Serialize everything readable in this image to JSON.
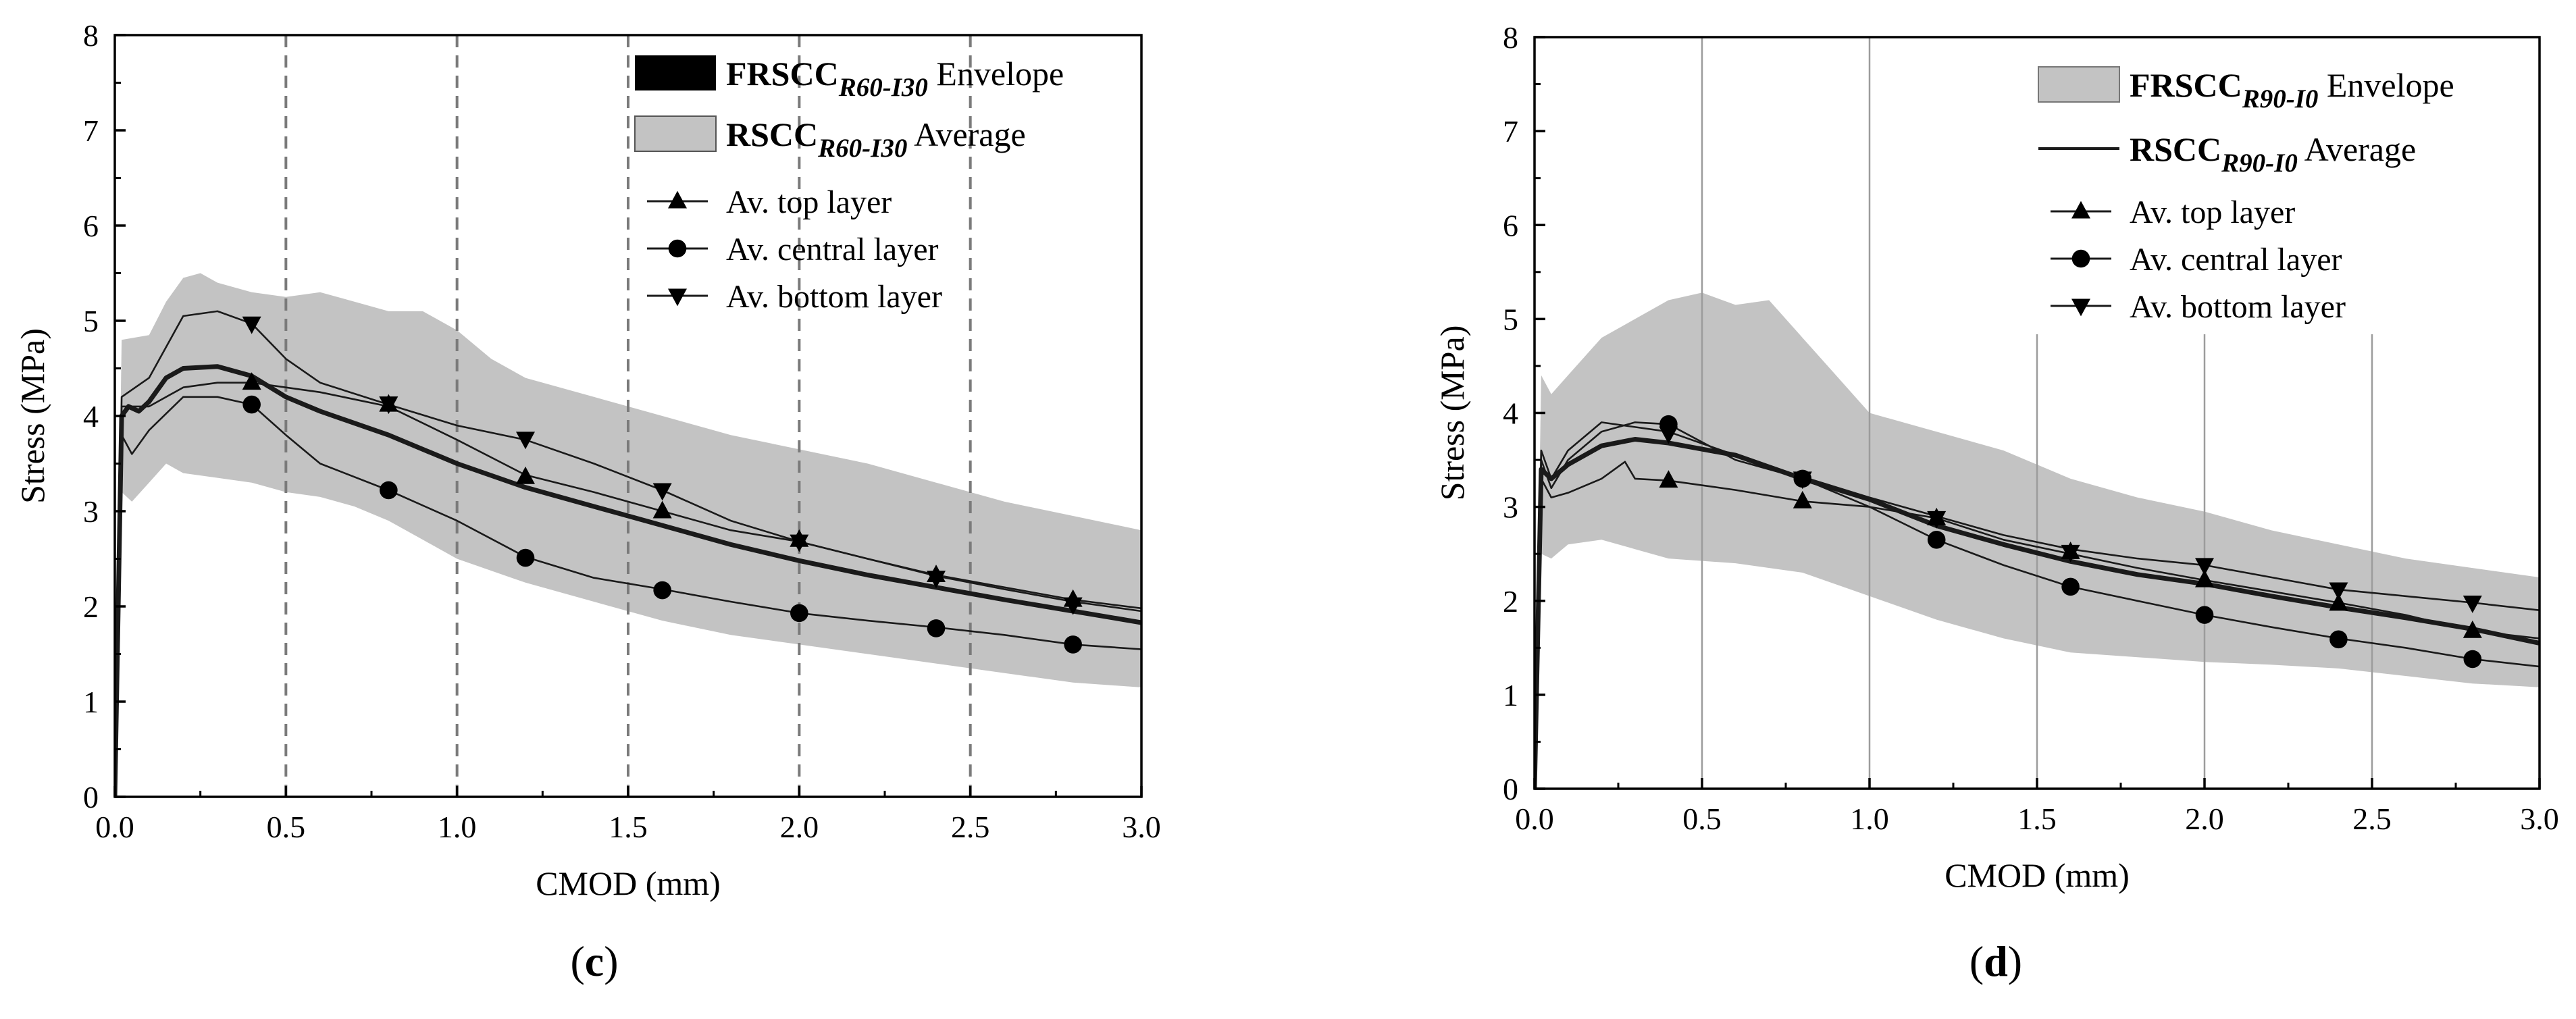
{
  "chart_data": [
    {
      "panel_label": "c",
      "type": "line",
      "xlabel": "CMOD (mm)",
      "ylabel": "Stress (MPa)",
      "xlim": [
        0,
        3
      ],
      "ylim": [
        0,
        8
      ],
      "xticks": [
        "0.0",
        "0.5",
        "1.0",
        "1.5",
        "2.0",
        "2.5",
        "3.0"
      ],
      "yticks": [
        "0",
        "1",
        "2",
        "3",
        "4",
        "5",
        "6",
        "7",
        "8"
      ],
      "vlines": [
        0.5,
        1.0,
        1.5,
        2.0,
        2.5
      ],
      "vline_style": "dashed",
      "legend": {
        "envelope": {
          "name_main": "FRSCC",
          "name_sub": "R60-I30",
          "suffix": " Envelope"
        },
        "average": {
          "name_main": "RSCC",
          "name_sub": "R60-I30",
          "suffix": " Average"
        },
        "top": "Av. top layer",
        "central": "Av. central layer",
        "bottom": "Av. bottom layer"
      },
      "envelope_upper": [
        [
          0,
          0
        ],
        [
          0.02,
          4.8
        ],
        [
          0.1,
          4.85
        ],
        [
          0.15,
          5.2
        ],
        [
          0.2,
          5.45
        ],
        [
          0.25,
          5.5
        ],
        [
          0.3,
          5.4
        ],
        [
          0.4,
          5.3
        ],
        [
          0.5,
          5.25
        ],
        [
          0.6,
          5.3
        ],
        [
          0.7,
          5.2
        ],
        [
          0.8,
          5.1
        ],
        [
          0.9,
          5.1
        ],
        [
          1.0,
          4.9
        ],
        [
          1.1,
          4.6
        ],
        [
          1.2,
          4.4
        ],
        [
          1.4,
          4.2
        ],
        [
          1.6,
          4.0
        ],
        [
          1.8,
          3.8
        ],
        [
          2.0,
          3.65
        ],
        [
          2.2,
          3.5
        ],
        [
          2.4,
          3.3
        ],
        [
          2.6,
          3.1
        ],
        [
          2.8,
          2.95
        ],
        [
          3.0,
          2.8
        ]
      ],
      "envelope_lower": [
        [
          0,
          0
        ],
        [
          0.02,
          3.2
        ],
        [
          0.05,
          3.1
        ],
        [
          0.1,
          3.3
        ],
        [
          0.15,
          3.5
        ],
        [
          0.2,
          3.4
        ],
        [
          0.3,
          3.35
        ],
        [
          0.4,
          3.3
        ],
        [
          0.5,
          3.2
        ],
        [
          0.6,
          3.15
        ],
        [
          0.7,
          3.05
        ],
        [
          0.8,
          2.9
        ],
        [
          0.9,
          2.7
        ],
        [
          1.0,
          2.5
        ],
        [
          1.2,
          2.25
        ],
        [
          1.4,
          2.05
        ],
        [
          1.6,
          1.85
        ],
        [
          1.8,
          1.7
        ],
        [
          2.0,
          1.6
        ],
        [
          2.2,
          1.5
        ],
        [
          2.4,
          1.4
        ],
        [
          2.6,
          1.3
        ],
        [
          2.8,
          1.2
        ],
        [
          3.0,
          1.15
        ]
      ],
      "average": [
        [
          0,
          0
        ],
        [
          0.02,
          4.0
        ],
        [
          0.04,
          4.1
        ],
        [
          0.07,
          4.05
        ],
        [
          0.1,
          4.15
        ],
        [
          0.15,
          4.4
        ],
        [
          0.2,
          4.5
        ],
        [
          0.3,
          4.52
        ],
        [
          0.4,
          4.42
        ],
        [
          0.5,
          4.2
        ],
        [
          0.6,
          4.05
        ],
        [
          0.8,
          3.8
        ],
        [
          1.0,
          3.5
        ],
        [
          1.2,
          3.25
        ],
        [
          1.4,
          3.05
        ],
        [
          1.6,
          2.85
        ],
        [
          1.8,
          2.65
        ],
        [
          2.0,
          2.48
        ],
        [
          2.2,
          2.33
        ],
        [
          2.4,
          2.2
        ],
        [
          2.6,
          2.07
        ],
        [
          2.8,
          1.95
        ],
        [
          3.0,
          1.83
        ]
      ],
      "top": [
        [
          0,
          0
        ],
        [
          0.02,
          4.1
        ],
        [
          0.1,
          4.1
        ],
        [
          0.2,
          4.3
        ],
        [
          0.3,
          4.35
        ],
        [
          0.4,
          4.35
        ],
        [
          0.6,
          4.25
        ],
        [
          0.8,
          4.1
        ],
        [
          1.0,
          3.75
        ],
        [
          1.2,
          3.38
        ],
        [
          1.4,
          3.2
        ],
        [
          1.6,
          3.0
        ],
        [
          1.8,
          2.8
        ],
        [
          2.0,
          2.68
        ],
        [
          2.2,
          2.5
        ],
        [
          2.4,
          2.33
        ],
        [
          2.6,
          2.2
        ],
        [
          2.8,
          2.07
        ],
        [
          3.0,
          1.98
        ]
      ],
      "central": [
        [
          0,
          0
        ],
        [
          0.02,
          3.8
        ],
        [
          0.05,
          3.6
        ],
        [
          0.1,
          3.85
        ],
        [
          0.2,
          4.2
        ],
        [
          0.3,
          4.2
        ],
        [
          0.4,
          4.12
        ],
        [
          0.5,
          3.8
        ],
        [
          0.6,
          3.5
        ],
        [
          0.8,
          3.22
        ],
        [
          1.0,
          2.9
        ],
        [
          1.2,
          2.52
        ],
        [
          1.4,
          2.3
        ],
        [
          1.6,
          2.18
        ],
        [
          1.8,
          2.05
        ],
        [
          2.0,
          1.93
        ],
        [
          2.2,
          1.85
        ],
        [
          2.4,
          1.78
        ],
        [
          2.6,
          1.7
        ],
        [
          2.8,
          1.6
        ],
        [
          3.0,
          1.55
        ]
      ],
      "bottom": [
        [
          0,
          0
        ],
        [
          0.02,
          4.2
        ],
        [
          0.1,
          4.4
        ],
        [
          0.2,
          5.05
        ],
        [
          0.3,
          5.1
        ],
        [
          0.4,
          4.97
        ],
        [
          0.5,
          4.6
        ],
        [
          0.6,
          4.35
        ],
        [
          0.8,
          4.12
        ],
        [
          1.0,
          3.9
        ],
        [
          1.2,
          3.75
        ],
        [
          1.4,
          3.5
        ],
        [
          1.6,
          3.22
        ],
        [
          1.8,
          2.9
        ],
        [
          2.0,
          2.68
        ],
        [
          2.2,
          2.5
        ],
        [
          2.4,
          2.32
        ],
        [
          2.6,
          2.18
        ],
        [
          2.8,
          2.05
        ],
        [
          3.0,
          1.95
        ]
      ],
      "markers": {
        "top": [
          [
            0.4,
            4.35
          ],
          [
            0.8,
            4.12
          ],
          [
            1.2,
            3.36
          ],
          [
            1.6,
            3.0
          ],
          [
            2.0,
            2.7
          ],
          [
            2.4,
            2.33
          ],
          [
            2.8,
            2.07
          ]
        ],
        "central": [
          [
            0.4,
            4.12
          ],
          [
            0.8,
            3.22
          ],
          [
            1.2,
            2.51
          ],
          [
            1.6,
            2.17
          ],
          [
            2.0,
            1.93
          ],
          [
            2.4,
            1.77
          ],
          [
            2.8,
            1.6
          ]
        ],
        "bottom": [
          [
            0.4,
            4.97
          ],
          [
            0.8,
            4.13
          ],
          [
            1.2,
            3.76
          ],
          [
            1.6,
            3.22
          ],
          [
            2.0,
            2.68
          ],
          [
            2.4,
            2.3
          ],
          [
            2.8,
            2.02
          ]
        ]
      }
    },
    {
      "panel_label": "d",
      "type": "line",
      "xlabel": "CMOD (mm)",
      "ylabel": "Stress (MPa)",
      "xlim": [
        0,
        3
      ],
      "ylim": [
        0,
        8
      ],
      "xticks": [
        "0.0",
        "0.5",
        "1.0",
        "1.5",
        "2.0",
        "2.5",
        "3.0"
      ],
      "yticks": [
        "0",
        "1",
        "2",
        "3",
        "4",
        "5",
        "6",
        "7",
        "8"
      ],
      "vlines": [
        0.5,
        1.0,
        1.5,
        2.0,
        2.5
      ],
      "vline_style": "solid",
      "legend": {
        "envelope": {
          "name_main": "FRSCC",
          "name_sub": "R90-I0",
          "suffix": " Envelope"
        },
        "average": {
          "name_main": "RSCC",
          "name_sub": "R90-I0",
          "suffix": " Average"
        },
        "top": "Av. top layer",
        "central": "Av. central layer",
        "bottom": "Av. bottom layer"
      },
      "envelope_upper": [
        [
          0,
          0
        ],
        [
          0.02,
          4.4
        ],
        [
          0.05,
          4.2
        ],
        [
          0.1,
          4.4
        ],
        [
          0.2,
          4.8
        ],
        [
          0.3,
          5.0
        ],
        [
          0.4,
          5.2
        ],
        [
          0.5,
          5.28
        ],
        [
          0.6,
          5.15
        ],
        [
          0.7,
          5.2
        ],
        [
          0.8,
          4.8
        ],
        [
          0.9,
          4.4
        ],
        [
          1.0,
          4.0
        ],
        [
          1.2,
          3.8
        ],
        [
          1.4,
          3.6
        ],
        [
          1.6,
          3.3
        ],
        [
          1.8,
          3.1
        ],
        [
          2.0,
          2.95
        ],
        [
          2.2,
          2.75
        ],
        [
          2.4,
          2.6
        ],
        [
          2.6,
          2.45
        ],
        [
          2.8,
          2.35
        ],
        [
          3.0,
          2.25
        ]
      ],
      "envelope_lower": [
        [
          0,
          0
        ],
        [
          0.02,
          2.5
        ],
        [
          0.05,
          2.45
        ],
        [
          0.1,
          2.6
        ],
        [
          0.2,
          2.65
        ],
        [
          0.3,
          2.55
        ],
        [
          0.4,
          2.45
        ],
        [
          0.6,
          2.4
        ],
        [
          0.8,
          2.3
        ],
        [
          1.0,
          2.05
        ],
        [
          1.2,
          1.8
        ],
        [
          1.4,
          1.6
        ],
        [
          1.6,
          1.45
        ],
        [
          1.8,
          1.4
        ],
        [
          2.0,
          1.35
        ],
        [
          2.2,
          1.32
        ],
        [
          2.4,
          1.28
        ],
        [
          2.6,
          1.2
        ],
        [
          2.8,
          1.12
        ],
        [
          3.0,
          1.08
        ]
      ],
      "average": [
        [
          0,
          0
        ],
        [
          0.02,
          3.4
        ],
        [
          0.05,
          3.3
        ],
        [
          0.1,
          3.45
        ],
        [
          0.2,
          3.65
        ],
        [
          0.3,
          3.72
        ],
        [
          0.4,
          3.68
        ],
        [
          0.6,
          3.55
        ],
        [
          0.8,
          3.3
        ],
        [
          1.0,
          3.08
        ],
        [
          1.2,
          2.8
        ],
        [
          1.4,
          2.6
        ],
        [
          1.6,
          2.42
        ],
        [
          1.8,
          2.28
        ],
        [
          2.0,
          2.18
        ],
        [
          2.2,
          2.05
        ],
        [
          2.4,
          1.93
        ],
        [
          2.6,
          1.82
        ],
        [
          2.8,
          1.7
        ],
        [
          3.0,
          1.55
        ]
      ],
      "top": [
        [
          0,
          0
        ],
        [
          0.02,
          3.3
        ],
        [
          0.05,
          3.1
        ],
        [
          0.1,
          3.15
        ],
        [
          0.2,
          3.3
        ],
        [
          0.27,
          3.48
        ],
        [
          0.3,
          3.3
        ],
        [
          0.4,
          3.28
        ],
        [
          0.6,
          3.18
        ],
        [
          0.8,
          3.06
        ],
        [
          1.0,
          3.0
        ],
        [
          1.2,
          2.88
        ],
        [
          1.4,
          2.65
        ],
        [
          1.6,
          2.5
        ],
        [
          1.8,
          2.35
        ],
        [
          2.0,
          2.22
        ],
        [
          2.2,
          2.1
        ],
        [
          2.4,
          1.98
        ],
        [
          2.6,
          1.85
        ],
        [
          2.8,
          1.68
        ],
        [
          3.0,
          1.6
        ]
      ],
      "central": [
        [
          0,
          0
        ],
        [
          0.02,
          3.5
        ],
        [
          0.05,
          3.2
        ],
        [
          0.1,
          3.5
        ],
        [
          0.2,
          3.8
        ],
        [
          0.3,
          3.9
        ],
        [
          0.4,
          3.88
        ],
        [
          0.6,
          3.5
        ],
        [
          0.8,
          3.3
        ],
        [
          1.0,
          3.0
        ],
        [
          1.2,
          2.65
        ],
        [
          1.4,
          2.38
        ],
        [
          1.6,
          2.15
        ],
        [
          1.8,
          2.0
        ],
        [
          2.0,
          1.85
        ],
        [
          2.2,
          1.72
        ],
        [
          2.4,
          1.6
        ],
        [
          2.6,
          1.5
        ],
        [
          2.8,
          1.38
        ],
        [
          3.0,
          1.3
        ]
      ],
      "bottom": [
        [
          0,
          0
        ],
        [
          0.02,
          3.6
        ],
        [
          0.05,
          3.3
        ],
        [
          0.1,
          3.6
        ],
        [
          0.2,
          3.9
        ],
        [
          0.3,
          3.85
        ],
        [
          0.4,
          3.8
        ],
        [
          0.6,
          3.55
        ],
        [
          0.8,
          3.32
        ],
        [
          1.0,
          3.1
        ],
        [
          1.2,
          2.9
        ],
        [
          1.4,
          2.7
        ],
        [
          1.6,
          2.55
        ],
        [
          1.8,
          2.45
        ],
        [
          2.0,
          2.38
        ],
        [
          2.2,
          2.25
        ],
        [
          2.4,
          2.12
        ],
        [
          2.6,
          2.05
        ],
        [
          2.8,
          1.98
        ],
        [
          3.0,
          1.9
        ]
      ],
      "markers": {
        "top": [
          [
            0.4,
            3.28
          ],
          [
            0.8,
            3.06
          ],
          [
            1.2,
            2.88
          ],
          [
            1.6,
            2.52
          ],
          [
            2.0,
            2.22
          ],
          [
            2.4,
            1.97
          ],
          [
            2.8,
            1.68
          ]
        ],
        "central": [
          [
            0.4,
            3.88
          ],
          [
            0.8,
            3.3
          ],
          [
            1.2,
            2.65
          ],
          [
            1.6,
            2.15
          ],
          [
            2.0,
            1.85
          ],
          [
            2.4,
            1.59
          ],
          [
            2.8,
            1.38
          ]
        ],
        "bottom": [
          [
            0.4,
            3.78
          ],
          [
            0.8,
            3.3
          ],
          [
            1.2,
            2.88
          ],
          [
            1.6,
            2.52
          ],
          [
            2.0,
            2.38
          ],
          [
            2.4,
            2.12
          ],
          [
            2.8,
            1.98
          ]
        ]
      }
    }
  ],
  "colors": {
    "envelope_fill": "#c3c3c3",
    "line": "#1a1a1a",
    "grid_dashed": "#7a7a7a",
    "grid_solid": "#9c9c9c",
    "axis": "#000000"
  }
}
